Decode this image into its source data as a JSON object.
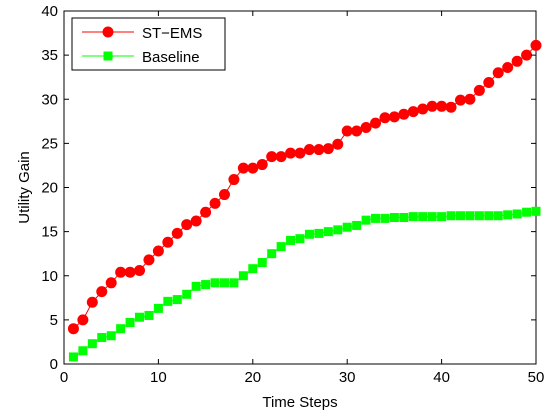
{
  "chart_data": {
    "type": "line",
    "title": "",
    "xlabel": "Time Steps",
    "ylabel": "Utility Gain",
    "xlim": [
      0,
      50
    ],
    "ylim": [
      0,
      40
    ],
    "xticks": [
      0,
      10,
      20,
      30,
      40,
      50
    ],
    "yticks": [
      0,
      5,
      10,
      15,
      20,
      25,
      30,
      35,
      40
    ],
    "grid": false,
    "legend_position": "top-left",
    "x": [
      1,
      2,
      3,
      4,
      5,
      6,
      7,
      8,
      9,
      10,
      11,
      12,
      13,
      14,
      15,
      16,
      17,
      18,
      19,
      20,
      21,
      22,
      23,
      24,
      25,
      26,
      27,
      28,
      29,
      30,
      31,
      32,
      33,
      34,
      35,
      36,
      37,
      38,
      39,
      40,
      41,
      42,
      43,
      44,
      45,
      46,
      47,
      48,
      49,
      50
    ],
    "series": [
      {
        "name": "ST−EMS",
        "color": "#ff0000",
        "marker": "circle",
        "values": [
          4.0,
          5.0,
          7.0,
          8.2,
          9.2,
          10.4,
          10.4,
          10.6,
          11.8,
          12.8,
          13.8,
          14.8,
          15.8,
          16.2,
          17.2,
          18.2,
          19.2,
          20.9,
          22.2,
          22.2,
          22.6,
          23.5,
          23.5,
          23.9,
          23.9,
          24.3,
          24.3,
          24.4,
          24.9,
          26.4,
          26.4,
          26.8,
          27.3,
          27.9,
          28.0,
          28.3,
          28.6,
          28.9,
          29.2,
          29.2,
          29.1,
          29.9,
          30.0,
          31.0,
          31.9,
          33.0,
          33.6,
          34.3,
          35.0,
          36.1
        ]
      },
      {
        "name": "Baseline",
        "color": "#00ff00",
        "marker": "square",
        "values": [
          0.8,
          1.5,
          2.3,
          3.0,
          3.2,
          4.0,
          4.7,
          5.3,
          5.5,
          6.3,
          7.1,
          7.3,
          7.9,
          8.8,
          9.0,
          9.2,
          9.2,
          9.2,
          10.0,
          10.8,
          11.5,
          12.5,
          13.3,
          14.0,
          14.2,
          14.7,
          14.8,
          15.0,
          15.2,
          15.5,
          15.7,
          16.3,
          16.5,
          16.5,
          16.6,
          16.6,
          16.7,
          16.7,
          16.7,
          16.7,
          16.8,
          16.8,
          16.8,
          16.8,
          16.8,
          16.8,
          16.9,
          17.0,
          17.2,
          17.3
        ]
      }
    ]
  }
}
